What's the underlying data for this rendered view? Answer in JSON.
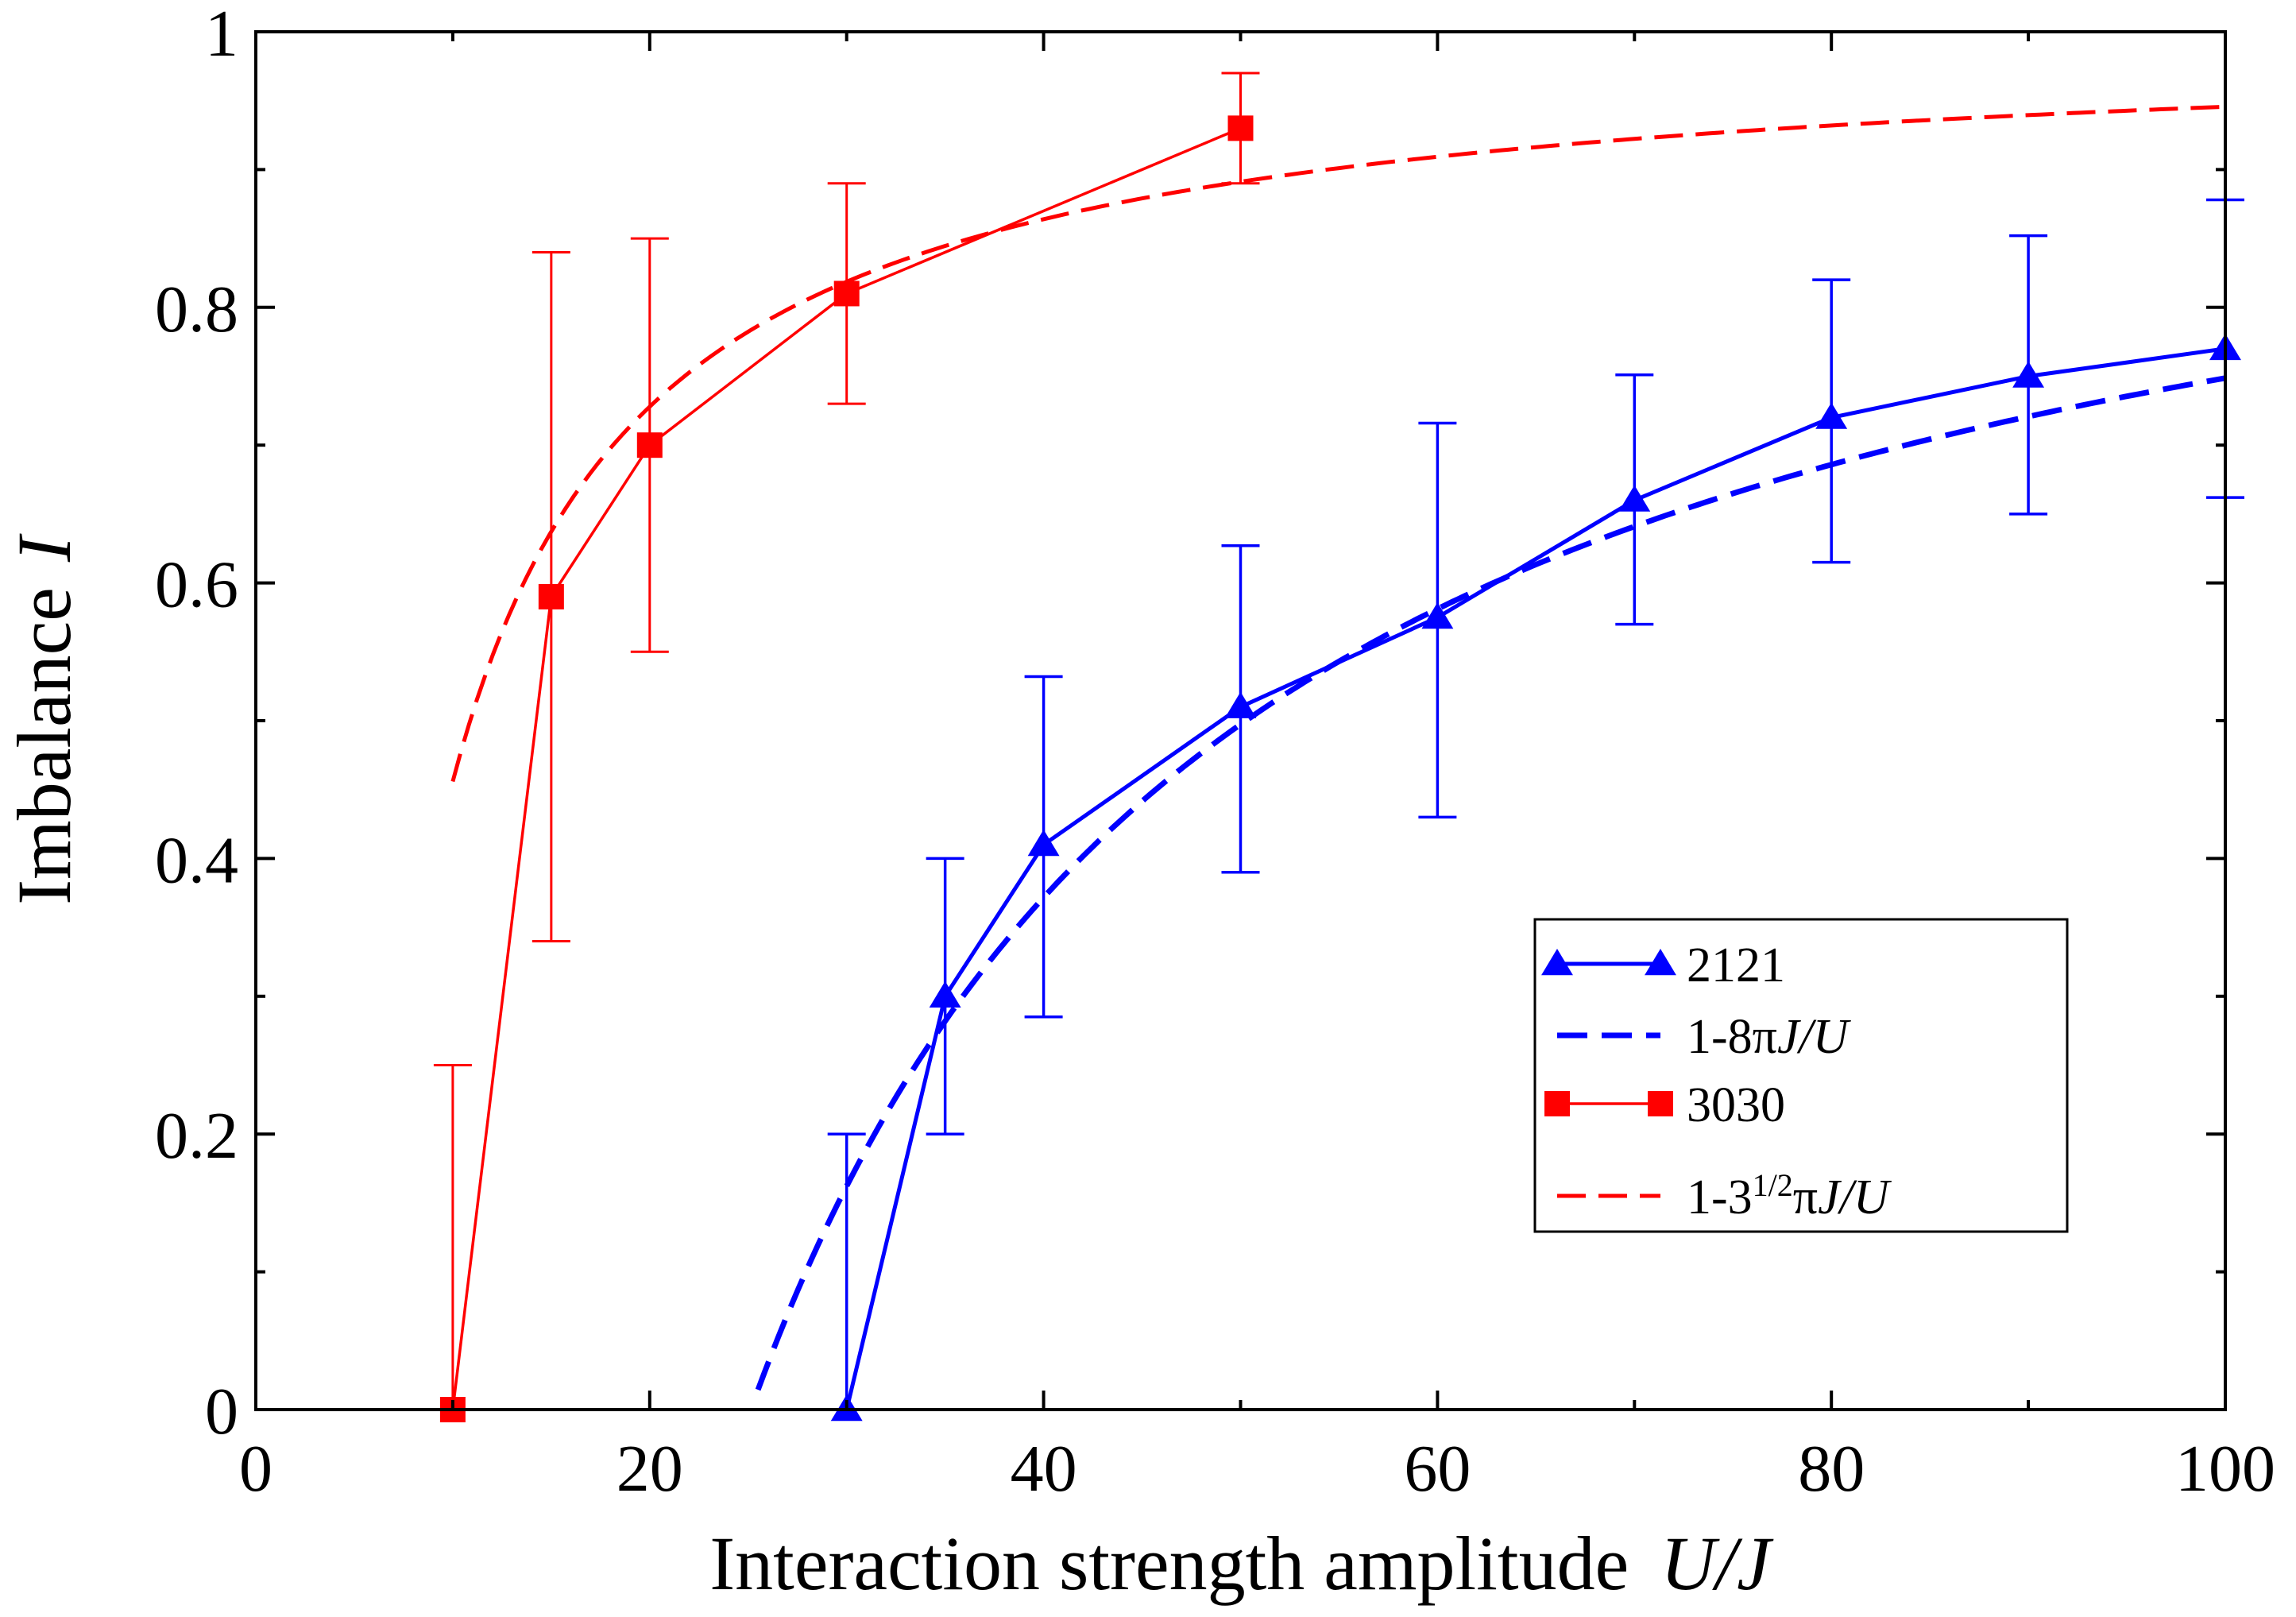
{
  "chart_data": {
    "type": "line",
    "title": "",
    "xlabel": "Interaction strength amplitude",
    "xlabel_symbol": "U/J",
    "ylabel": "Imbalance",
    "ylabel_symbol": "I",
    "xlim": [
      0,
      100
    ],
    "ylim": [
      0,
      1
    ],
    "grid": false,
    "legend_position": "lower-right",
    "x_ticks": [
      0,
      20,
      40,
      60,
      80,
      100
    ],
    "x_tick_labels": [
      "0",
      "20",
      "40",
      "60",
      "80",
      "100"
    ],
    "y_ticks": [
      0,
      0.2,
      0.4,
      0.6,
      0.8,
      1
    ],
    "y_tick_labels": [
      "0",
      "0.2",
      "0.4",
      "0.6",
      "0.8",
      "1"
    ],
    "series": [
      {
        "name": "2121",
        "kind": "markers-line",
        "marker": "triangle",
        "color": "#0000ff",
        "x": [
          30,
          35,
          40,
          50,
          60,
          70,
          80,
          90,
          100
        ],
        "y": [
          0.0,
          0.3,
          0.41,
          0.51,
          0.575,
          0.66,
          0.72,
          0.75,
          0.77
        ],
        "err_low": [
          0.0,
          0.2,
          0.285,
          0.39,
          0.43,
          0.57,
          0.615,
          0.65,
          0.662
        ],
        "err_high": [
          0.2,
          0.4,
          0.532,
          0.627,
          0.716,
          0.751,
          0.82,
          0.852,
          0.878
        ]
      },
      {
        "name": "1-8πJ/U",
        "kind": "dashed",
        "color": "#0000ff",
        "formula_coeff": 25.1327,
        "x_start": 25.5,
        "x_end": 100
      },
      {
        "name": "3030",
        "kind": "markers-line",
        "marker": "square",
        "color": "#ff0000",
        "x": [
          10,
          15,
          20,
          30,
          50
        ],
        "y": [
          0.0,
          0.59,
          0.7,
          0.81,
          0.93
        ],
        "err_low": [
          0.0,
          0.34,
          0.55,
          0.73,
          0.89
        ],
        "err_high": [
          0.25,
          0.84,
          0.85,
          0.89,
          0.97
        ]
      },
      {
        "name": "1-3^{1/2}πJ/U",
        "kind": "dashed",
        "color": "#ff0000",
        "formula_coeff": 5.4414,
        "x_start": 10,
        "x_end": 100
      }
    ],
    "legend": [
      {
        "label": "2121",
        "parts": [
          {
            "t": "2121",
            "i": false
          }
        ]
      },
      {
        "label": "1-8πJ/U",
        "parts": [
          {
            "t": "1-8π",
            "i": false
          },
          {
            "t": "J/U",
            "i": true
          }
        ]
      },
      {
        "label": "3030",
        "parts": [
          {
            "t": "3030",
            "i": false
          }
        ]
      },
      {
        "label": "1-3^{1/2}πJ/U",
        "parts": [
          {
            "t": "1-3",
            "i": false
          },
          {
            "t": "1/2",
            "i": false,
            "sup": true
          },
          {
            "t": "π",
            "i": false
          },
          {
            "t": "J/U",
            "i": true
          }
        ]
      }
    ]
  }
}
